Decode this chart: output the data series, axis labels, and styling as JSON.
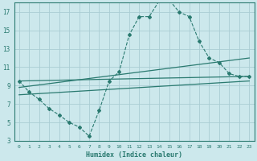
{
  "xlabel": "Humidex (Indice chaleur)",
  "ylabel": "",
  "bg_color": "#cce8ec",
  "grid_color": "#aacdd4",
  "line_color": "#2a7a70",
  "xlim": [
    -0.5,
    23.5
  ],
  "ylim": [
    3,
    18
  ],
  "yticks": [
    3,
    5,
    7,
    9,
    11,
    13,
    15,
    17
  ],
  "xticks": [
    0,
    1,
    2,
    3,
    4,
    5,
    6,
    7,
    8,
    9,
    10,
    11,
    12,
    13,
    14,
    15,
    16,
    17,
    18,
    19,
    20,
    21,
    22,
    23
  ],
  "curve_x": [
    0,
    1,
    2,
    3,
    4,
    5,
    6,
    7,
    8,
    9,
    10,
    11,
    12,
    13,
    14,
    15,
    16,
    17,
    18,
    19,
    20,
    21,
    22,
    23
  ],
  "curve_y": [
    9.5,
    8.3,
    7.5,
    6.5,
    5.8,
    5.0,
    4.5,
    3.5,
    6.3,
    9.5,
    10.5,
    14.5,
    16.5,
    16.5,
    18.2,
    18.3,
    17.0,
    16.5,
    13.8,
    12.0,
    11.5,
    10.3,
    10.0,
    10.0
  ],
  "line2_x": [
    0,
    23
  ],
  "line2_y": [
    9.5,
    10.0
  ],
  "line3_x": [
    0,
    23
  ],
  "line3_y": [
    8.8,
    12.0
  ],
  "line4_x": [
    0,
    23
  ],
  "line4_y": [
    8.0,
    9.5
  ]
}
